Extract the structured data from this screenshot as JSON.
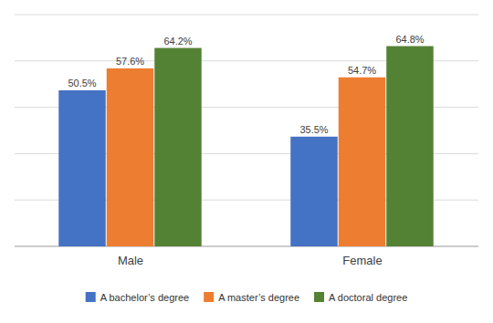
{
  "chart_data": {
    "type": "bar",
    "categories": [
      "Male",
      "Female"
    ],
    "series": [
      {
        "name": "A bachelor’s degree",
        "color": "#4472C4",
        "values": [
          50.5,
          35.5
        ],
        "value_labels": [
          "50.5%",
          "35.5%"
        ]
      },
      {
        "name": "A master’s degree",
        "color": "#ED7D31",
        "values": [
          57.6,
          54.7
        ],
        "value_labels": [
          "57.6%",
          "54.7%"
        ]
      },
      {
        "name": "A doctoral degree",
        "color": "#548235",
        "values": [
          64.2,
          64.8
        ],
        "value_labels": [
          "64.2%",
          "64.8%"
        ]
      }
    ],
    "ylim": [
      0,
      75
    ],
    "yticks": [
      15,
      30,
      45,
      60,
      75
    ],
    "grid": true,
    "tick_labels": "x",
    "data_labels": true,
    "legend": "bottom"
  }
}
